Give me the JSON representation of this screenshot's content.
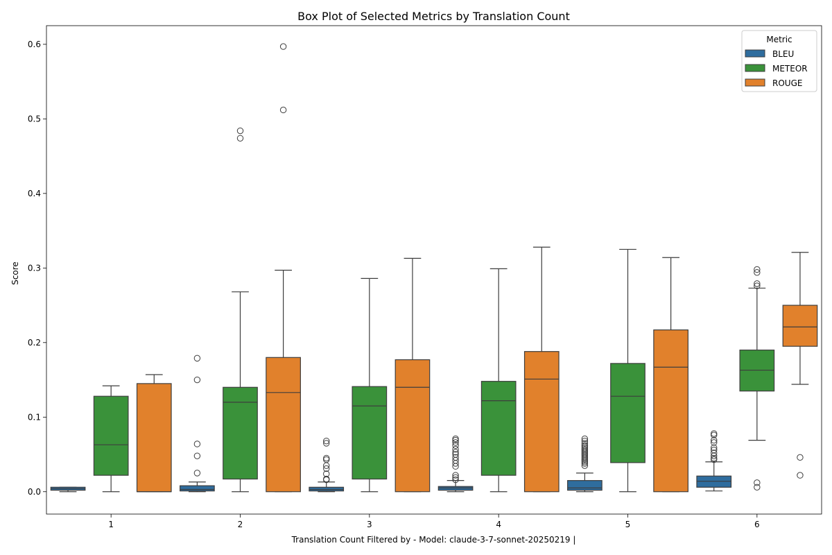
{
  "chart_data": {
    "type": "box",
    "title": "Box Plot of Selected Metrics by Translation Count",
    "xlabel": "Translation Count Filtered by - Model: claude-3-7-sonnet-20250219 |",
    "ylabel": "Score",
    "categories": [
      "1",
      "2",
      "3",
      "4",
      "5",
      "6"
    ],
    "ylim": [
      -0.03,
      0.625
    ],
    "yticks": [
      0.0,
      0.1,
      0.2,
      0.3,
      0.4,
      0.5,
      0.6
    ],
    "ytick_labels": [
      "0.0",
      "0.1",
      "0.2",
      "0.3",
      "0.4",
      "0.5",
      "0.6"
    ],
    "grid": false,
    "legend": {
      "title": "Metric",
      "placement": "top-right"
    },
    "series": [
      {
        "name": "BLEU",
        "color": "#2f6d9e",
        "boxes": [
          {
            "whislo": 0.0,
            "q1": 0.002,
            "med": 0.004,
            "q3": 0.006,
            "whishi": 0.006,
            "fliers": []
          },
          {
            "whislo": 0.0,
            "q1": 0.001,
            "med": 0.003,
            "q3": 0.008,
            "whishi": 0.013,
            "fliers": [
              0.179,
              0.15,
              0.064,
              0.048,
              0.025
            ]
          },
          {
            "whislo": 0.0,
            "q1": 0.001,
            "med": 0.003,
            "q3": 0.006,
            "whishi": 0.013,
            "fliers": [
              0.068,
              0.065,
              0.045,
              0.043,
              0.035,
              0.031,
              0.024,
              0.017,
              0.016
            ]
          },
          {
            "whislo": 0.0,
            "q1": 0.002,
            "med": 0.005,
            "q3": 0.007,
            "whishi": 0.015,
            "fliers": [
              0.071,
              0.069,
              0.066,
              0.062,
              0.057,
              0.053,
              0.05,
              0.046,
              0.042,
              0.038,
              0.034,
              0.022,
              0.019,
              0.016
            ]
          },
          {
            "whislo": 0.0,
            "q1": 0.002,
            "med": 0.005,
            "q3": 0.015,
            "whishi": 0.025,
            "fliers": [
              0.071,
              0.068,
              0.065,
              0.062,
              0.06,
              0.058,
              0.056,
              0.054,
              0.052,
              0.05,
              0.048,
              0.046,
              0.044,
              0.042,
              0.04,
              0.038,
              0.035
            ]
          },
          {
            "whislo": 0.001,
            "q1": 0.006,
            "med": 0.014,
            "q3": 0.021,
            "whishi": 0.04,
            "fliers": [
              0.078,
              0.076,
              0.069,
              0.066,
              0.059,
              0.056,
              0.052,
              0.048,
              0.045,
              0.043
            ]
          }
        ]
      },
      {
        "name": "METEOR",
        "color": "#3a923a",
        "boxes": [
          {
            "whislo": 0.0,
            "q1": 0.022,
            "med": 0.063,
            "q3": 0.128,
            "whishi": 0.142,
            "fliers": []
          },
          {
            "whislo": 0.0,
            "q1": 0.017,
            "med": 0.12,
            "q3": 0.14,
            "whishi": 0.268,
            "fliers": [
              0.484,
              0.474
            ]
          },
          {
            "whislo": 0.0,
            "q1": 0.017,
            "med": 0.115,
            "q3": 0.141,
            "whishi": 0.286,
            "fliers": []
          },
          {
            "whislo": 0.0,
            "q1": 0.022,
            "med": 0.122,
            "q3": 0.148,
            "whishi": 0.299,
            "fliers": []
          },
          {
            "whislo": 0.0,
            "q1": 0.039,
            "med": 0.128,
            "q3": 0.172,
            "whishi": 0.325,
            "fliers": []
          },
          {
            "whislo": 0.069,
            "q1": 0.135,
            "med": 0.163,
            "q3": 0.19,
            "whishi": 0.273,
            "fliers": [
              0.298,
              0.294,
              0.279,
              0.276,
              0.012,
              0.006
            ]
          }
        ]
      },
      {
        "name": "ROUGE",
        "color": "#e1812c",
        "boxes": [
          {
            "whislo": 0.0,
            "q1": 0.0,
            "med": 0.0,
            "q3": 0.145,
            "whishi": 0.157,
            "fliers": []
          },
          {
            "whislo": 0.0,
            "q1": 0.0,
            "med": 0.133,
            "q3": 0.18,
            "whishi": 0.297,
            "fliers": [
              0.597,
              0.512
            ]
          },
          {
            "whislo": 0.0,
            "q1": 0.0,
            "med": 0.14,
            "q3": 0.177,
            "whishi": 0.313,
            "fliers": []
          },
          {
            "whislo": 0.0,
            "q1": 0.0,
            "med": 0.151,
            "q3": 0.188,
            "whishi": 0.328,
            "fliers": []
          },
          {
            "whislo": 0.0,
            "q1": 0.0,
            "med": 0.167,
            "q3": 0.217,
            "whishi": 0.314,
            "fliers": []
          },
          {
            "whislo": 0.144,
            "q1": 0.195,
            "med": 0.221,
            "q3": 0.25,
            "whishi": 0.321,
            "fliers": [
              0.046,
              0.022
            ]
          }
        ]
      }
    ]
  }
}
